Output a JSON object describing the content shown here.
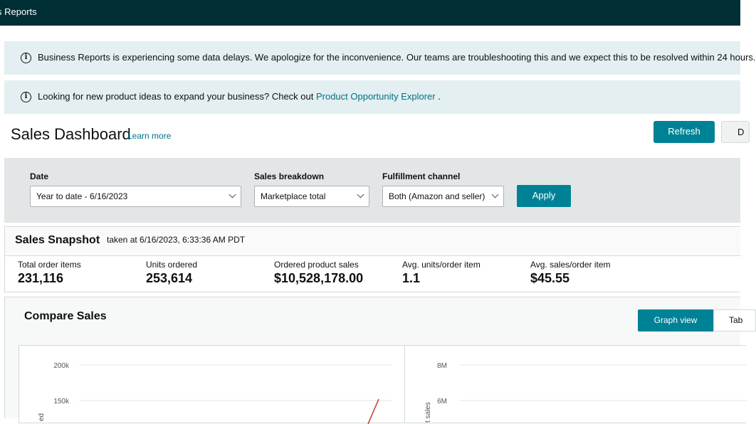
{
  "topbar": {
    "title": "s Reports"
  },
  "alerts": {
    "delay": {
      "icon": "info-icon",
      "text": "Business Reports is experiencing some data delays. We apologize for the inconvenience. Our teams are troubleshooting this and we expect this to be resolved within 24 hours."
    },
    "product_ideas": {
      "icon": "info-icon",
      "text": "Looking for new product ideas to expand your business? Check out ",
      "link": "Product Opportunity Explorer",
      "suffix": " ."
    }
  },
  "header": {
    "title": "Sales Dashboard",
    "learn_more": "Learn more",
    "refresh_label": "Refresh",
    "download_label": "D"
  },
  "filters": {
    "date": {
      "label": "Date",
      "value": "Year to date - 6/16/2023"
    },
    "sales_breakdown": {
      "label": "Sales breakdown",
      "value": "Marketplace total"
    },
    "fulfillment": {
      "label": "Fulfillment channel",
      "value": "Both (Amazon and seller)"
    },
    "apply_label": "Apply"
  },
  "snapshot": {
    "title": "Sales Snapshot",
    "taken": "taken at 6/16/2023, 6:33:36 AM PDT",
    "metrics": [
      {
        "label": "Total order items",
        "value": "231,116"
      },
      {
        "label": "Units ordered",
        "value": "253,614"
      },
      {
        "label": "Ordered product sales",
        "value": "$10,528,178.00"
      },
      {
        "label": "Avg. units/order item",
        "value": "1.1"
      },
      {
        "label": "Avg. sales/order item",
        "value": "$45.55"
      }
    ]
  },
  "compare": {
    "title": "Compare Sales",
    "graph_view_label": "Graph view",
    "table_view_label": "Tab",
    "left_chart": {
      "ticks": [
        "200k",
        "150k"
      ],
      "ylabel": "ed"
    },
    "right_chart": {
      "ticks": [
        "8M",
        "6M"
      ],
      "ylabel": "t sales"
    }
  },
  "colors": {
    "accent": "#008296",
    "topbar": "#002f36",
    "alert_bg": "#e3eff0",
    "line": "#c0392b"
  }
}
